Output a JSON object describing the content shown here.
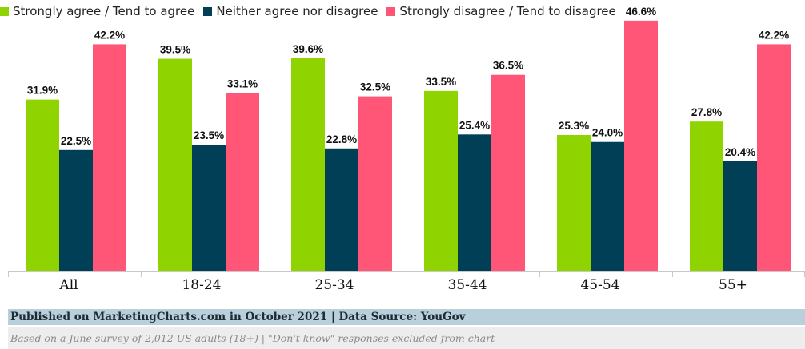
{
  "chart_data": {
    "type": "bar",
    "categories": [
      "All",
      "18-24",
      "25-34",
      "35-44",
      "45-54",
      "55+"
    ],
    "series": [
      {
        "name": "Strongly agree / Tend to agree",
        "color": "#8fd400",
        "values": [
          31.9,
          39.5,
          39.6,
          33.5,
          25.3,
          27.8
        ]
      },
      {
        "name": "Neither agree nor disagree",
        "color": "#003f56",
        "values": [
          22.5,
          23.5,
          22.8,
          25.4,
          24.0,
          20.4
        ]
      },
      {
        "name": "Strongly disagree / Tend to disagree",
        "color": "#ff5577",
        "values": [
          42.2,
          33.1,
          32.5,
          36.5,
          46.6,
          42.2
        ]
      }
    ],
    "value_suffix": "%",
    "ylim": [
      0,
      50
    ],
    "legend_position": "top-left",
    "grid": false
  },
  "footer": {
    "source": "Published on MarketingCharts.com in October 2021 | Data Source: YouGov",
    "note": "Based on a June survey of 2,012 US adults (18+) | \"Don't know\" responses excluded from chart"
  }
}
